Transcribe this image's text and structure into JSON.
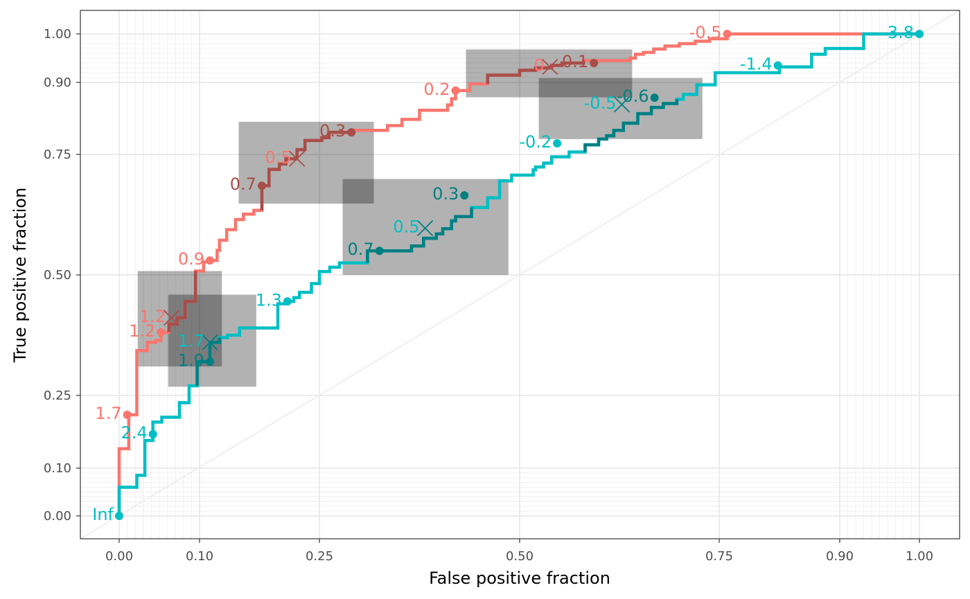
{
  "chart_data": {
    "type": "line",
    "title": "",
    "xlabel": "False positive fraction",
    "ylabel": "True positive fraction",
    "xlim": [
      -0.05,
      1.05
    ],
    "ylim": [
      -0.05,
      1.05
    ],
    "scale": "probit-style nonlinear (labeled ticks)",
    "grid": true,
    "legend": "none",
    "x_ticks": [
      {
        "value": 0.0,
        "label": "0.00"
      },
      {
        "value": 0.1,
        "label": "0.10"
      },
      {
        "value": 0.25,
        "label": "0.25"
      },
      {
        "value": 0.5,
        "label": "0.50"
      },
      {
        "value": 0.75,
        "label": "0.75"
      },
      {
        "value": 0.9,
        "label": "0.90"
      },
      {
        "value": 1.0,
        "label": "1.00"
      }
    ],
    "y_ticks": [
      {
        "value": 0.0,
        "label": "0.00"
      },
      {
        "value": 0.1,
        "label": "0.10"
      },
      {
        "value": 0.25,
        "label": "0.25"
      },
      {
        "value": 0.5,
        "label": "0.50"
      },
      {
        "value": 0.75,
        "label": "0.75"
      },
      {
        "value": 0.9,
        "label": "0.90"
      },
      {
        "value": 1.0,
        "label": "1.00"
      }
    ],
    "reference_line": {
      "from": [
        -0.05,
        -0.05
      ],
      "to": [
        1.05,
        1.05
      ],
      "color": "#ebebeb"
    },
    "series": [
      {
        "color": "#F8766D",
        "dark_color": "#a84e49",
        "steps": [
          [
            0.0,
            0.0
          ],
          [
            0.0,
            0.14
          ],
          [
            0.012,
            0.14
          ],
          [
            0.012,
            0.21
          ],
          [
            0.022,
            0.21
          ],
          [
            0.022,
            0.343
          ],
          [
            0.035,
            0.343
          ],
          [
            0.035,
            0.36
          ],
          [
            0.045,
            0.36
          ],
          [
            0.045,
            0.364
          ],
          [
            0.052,
            0.364
          ],
          [
            0.052,
            0.381
          ],
          [
            0.062,
            0.381
          ],
          [
            0.062,
            0.398
          ],
          [
            0.072,
            0.398
          ],
          [
            0.072,
            0.411
          ],
          [
            0.082,
            0.411
          ],
          [
            0.082,
            0.445
          ],
          [
            0.095,
            0.445
          ],
          [
            0.095,
            0.508
          ],
          [
            0.105,
            0.508
          ],
          [
            0.105,
            0.527
          ],
          [
            0.113,
            0.527
          ],
          [
            0.113,
            0.53
          ],
          [
            0.122,
            0.53
          ],
          [
            0.122,
            0.551
          ],
          [
            0.125,
            0.551
          ],
          [
            0.125,
            0.572
          ],
          [
            0.134,
            0.572
          ],
          [
            0.134,
            0.594
          ],
          [
            0.145,
            0.594
          ],
          [
            0.145,
            0.615
          ],
          [
            0.155,
            0.615
          ],
          [
            0.155,
            0.626
          ],
          [
            0.168,
            0.626
          ],
          [
            0.168,
            0.634
          ],
          [
            0.178,
            0.634
          ],
          [
            0.178,
            0.685
          ],
          [
            0.187,
            0.685
          ],
          [
            0.187,
            0.719
          ],
          [
            0.2,
            0.719
          ],
          [
            0.2,
            0.73
          ],
          [
            0.208,
            0.73
          ],
          [
            0.208,
            0.741
          ],
          [
            0.222,
            0.741
          ],
          [
            0.222,
            0.76
          ],
          [
            0.232,
            0.76
          ],
          [
            0.232,
            0.779
          ],
          [
            0.253,
            0.779
          ],
          [
            0.253,
            0.785
          ],
          [
            0.262,
            0.785
          ],
          [
            0.262,
            0.796
          ],
          [
            0.29,
            0.796
          ],
          [
            0.29,
            0.8
          ],
          [
            0.335,
            0.8
          ],
          [
            0.335,
            0.81
          ],
          [
            0.353,
            0.81
          ],
          [
            0.353,
            0.823
          ],
          [
            0.375,
            0.823
          ],
          [
            0.375,
            0.842
          ],
          [
            0.41,
            0.842
          ],
          [
            0.41,
            0.853
          ],
          [
            0.415,
            0.853
          ],
          [
            0.415,
            0.866
          ],
          [
            0.42,
            0.866
          ],
          [
            0.42,
            0.883
          ],
          [
            0.438,
            0.883
          ],
          [
            0.438,
            0.897
          ],
          [
            0.46,
            0.897
          ],
          [
            0.46,
            0.915
          ],
          [
            0.5,
            0.915
          ],
          [
            0.5,
            0.925
          ],
          [
            0.52,
            0.925
          ],
          [
            0.52,
            0.93
          ],
          [
            0.54,
            0.93
          ],
          [
            0.54,
            0.935
          ],
          [
            0.553,
            0.935
          ],
          [
            0.553,
            0.94
          ],
          [
            0.58,
            0.94
          ],
          [
            0.58,
            0.945
          ],
          [
            0.638,
            0.945
          ],
          [
            0.638,
            0.95
          ],
          [
            0.645,
            0.95
          ],
          [
            0.645,
            0.958
          ],
          [
            0.655,
            0.958
          ],
          [
            0.655,
            0.962
          ],
          [
            0.668,
            0.962
          ],
          [
            0.668,
            0.969
          ],
          [
            0.682,
            0.969
          ],
          [
            0.682,
            0.975
          ],
          [
            0.7,
            0.975
          ],
          [
            0.7,
            0.98
          ],
          [
            0.72,
            0.98
          ],
          [
            0.72,
            0.985
          ],
          [
            0.738,
            0.985
          ],
          [
            0.738,
            0.99
          ],
          [
            0.76,
            0.99
          ],
          [
            0.76,
            1.0
          ],
          [
            1.0,
            1.0
          ]
        ],
        "points": [
          {
            "x": 0.01,
            "y": 0.21,
            "label": "1.7"
          },
          {
            "x": 0.052,
            "y": 0.381,
            "label": "1.2"
          },
          {
            "x": 0.113,
            "y": 0.53,
            "label": "0.9"
          },
          {
            "x": 0.178,
            "y": 0.685,
            "label": "0.7"
          },
          {
            "x": 0.29,
            "y": 0.796,
            "label": "0.3"
          },
          {
            "x": 0.42,
            "y": 0.883,
            "label": "0.2"
          },
          {
            "x": 0.593,
            "y": 0.94,
            "label": "0.1"
          },
          {
            "x": 0.76,
            "y": 1.0,
            "label": "-0.5"
          }
        ],
        "highlight_segments": [
          {
            "from": 0.062,
            "to": 0.095
          },
          {
            "from": 0.178,
            "to": 0.29
          },
          {
            "from": 0.46,
            "to": 0.593
          }
        ],
        "crosses": [
          {
            "x": 0.065,
            "y": 0.411,
            "label": "1.2"
          },
          {
            "x": 0.222,
            "y": 0.741,
            "label": "0.5"
          },
          {
            "x": 0.538,
            "y": 0.932,
            "label": "0"
          }
        ],
        "boxes": [
          {
            "x0": 0.023,
            "x1": 0.128,
            "y0": 0.31,
            "y1": 0.508
          },
          {
            "x0": 0.149,
            "x1": 0.318,
            "y0": 0.648,
            "y1": 0.818
          },
          {
            "x0": 0.433,
            "x1": 0.641,
            "y0": 0.869,
            "y1": 0.968
          }
        ]
      },
      {
        "color": "#00BFC4",
        "dark_color": "#007f83",
        "steps": [
          [
            0.0,
            0.0
          ],
          [
            0.0,
            0.06
          ],
          [
            0.022,
            0.06
          ],
          [
            0.022,
            0.085
          ],
          [
            0.032,
            0.085
          ],
          [
            0.032,
            0.157
          ],
          [
            0.042,
            0.157
          ],
          [
            0.042,
            0.195
          ],
          [
            0.053,
            0.195
          ],
          [
            0.053,
            0.205
          ],
          [
            0.075,
            0.205
          ],
          [
            0.075,
            0.235
          ],
          [
            0.087,
            0.235
          ],
          [
            0.087,
            0.27
          ],
          [
            0.097,
            0.27
          ],
          [
            0.097,
            0.32
          ],
          [
            0.113,
            0.32
          ],
          [
            0.113,
            0.36
          ],
          [
            0.125,
            0.36
          ],
          [
            0.125,
            0.37
          ],
          [
            0.135,
            0.37
          ],
          [
            0.135,
            0.375
          ],
          [
            0.15,
            0.375
          ],
          [
            0.15,
            0.39
          ],
          [
            0.198,
            0.39
          ],
          [
            0.198,
            0.44
          ],
          [
            0.21,
            0.44
          ],
          [
            0.21,
            0.445
          ],
          [
            0.218,
            0.445
          ],
          [
            0.218,
            0.453
          ],
          [
            0.225,
            0.453
          ],
          [
            0.225,
            0.464
          ],
          [
            0.24,
            0.464
          ],
          [
            0.24,
            0.482
          ],
          [
            0.25,
            0.482
          ],
          [
            0.25,
            0.507
          ],
          [
            0.263,
            0.507
          ],
          [
            0.263,
            0.516
          ],
          [
            0.275,
            0.516
          ],
          [
            0.275,
            0.525
          ],
          [
            0.31,
            0.525
          ],
          [
            0.31,
            0.55
          ],
          [
            0.365,
            0.55
          ],
          [
            0.365,
            0.56
          ],
          [
            0.38,
            0.56
          ],
          [
            0.38,
            0.576
          ],
          [
            0.396,
            0.576
          ],
          [
            0.396,
            0.585
          ],
          [
            0.404,
            0.585
          ],
          [
            0.404,
            0.596
          ],
          [
            0.415,
            0.596
          ],
          [
            0.415,
            0.612
          ],
          [
            0.42,
            0.612
          ],
          [
            0.42,
            0.621
          ],
          [
            0.44,
            0.621
          ],
          [
            0.44,
            0.64
          ],
          [
            0.46,
            0.64
          ],
          [
            0.46,
            0.66
          ],
          [
            0.475,
            0.66
          ],
          [
            0.475,
            0.695
          ],
          [
            0.49,
            0.695
          ],
          [
            0.49,
            0.707
          ],
          [
            0.517,
            0.707
          ],
          [
            0.517,
            0.718
          ],
          [
            0.52,
            0.718
          ],
          [
            0.52,
            0.724
          ],
          [
            0.53,
            0.724
          ],
          [
            0.53,
            0.732
          ],
          [
            0.54,
            0.732
          ],
          [
            0.54,
            0.745
          ],
          [
            0.562,
            0.745
          ],
          [
            0.562,
            0.755
          ],
          [
            0.582,
            0.755
          ],
          [
            0.582,
            0.77
          ],
          [
            0.599,
            0.77
          ],
          [
            0.599,
            0.782
          ],
          [
            0.609,
            0.782
          ],
          [
            0.609,
            0.789
          ],
          [
            0.618,
            0.789
          ],
          [
            0.618,
            0.8
          ],
          [
            0.63,
            0.8
          ],
          [
            0.63,
            0.815
          ],
          [
            0.648,
            0.815
          ],
          [
            0.648,
            0.835
          ],
          [
            0.665,
            0.835
          ],
          [
            0.665,
            0.848
          ],
          [
            0.68,
            0.848
          ],
          [
            0.68,
            0.856
          ],
          [
            0.697,
            0.856
          ],
          [
            0.697,
            0.865
          ],
          [
            0.705,
            0.865
          ],
          [
            0.705,
            0.875
          ],
          [
            0.722,
            0.875
          ],
          [
            0.722,
            0.895
          ],
          [
            0.745,
            0.895
          ],
          [
            0.745,
            0.92
          ],
          [
            0.825,
            0.92
          ],
          [
            0.825,
            0.932
          ],
          [
            0.865,
            0.932
          ],
          [
            0.865,
            0.958
          ],
          [
            0.882,
            0.958
          ],
          [
            0.882,
            0.97
          ],
          [
            0.93,
            0.97
          ],
          [
            0.93,
            1.0
          ],
          [
            1.0,
            1.0
          ]
        ],
        "points": [
          {
            "x": 0.0,
            "y": 0.0,
            "label": "Inf"
          },
          {
            "x": 0.042,
            "y": 0.17,
            "label": "2.4"
          },
          {
            "x": 0.113,
            "y": 0.32,
            "label": "1.9"
          },
          {
            "x": 0.21,
            "y": 0.445,
            "label": "1.3"
          },
          {
            "x": 0.325,
            "y": 0.55,
            "label": "0.7"
          },
          {
            "x": 0.431,
            "y": 0.665,
            "label": "0.3"
          },
          {
            "x": 0.547,
            "y": 0.773,
            "label": "-0.2"
          },
          {
            "x": 0.669,
            "y": 0.868,
            "label": "-0.6"
          },
          {
            "x": 0.823,
            "y": 0.935,
            "label": "-1.4"
          },
          {
            "x": 1.0,
            "y": 1.0,
            "label": "-3.8"
          }
        ],
        "highlight_segments": [
          {
            "from": 0.097,
            "to": 0.132
          },
          {
            "from": 0.31,
            "to": 0.44
          },
          {
            "from": 0.575,
            "to": 0.697
          }
        ],
        "crosses": [
          {
            "x": 0.113,
            "y": 0.36,
            "label": "1.7"
          },
          {
            "x": 0.382,
            "y": 0.597,
            "label": "0.5"
          },
          {
            "x": 0.628,
            "y": 0.854,
            "label": "-0.5"
          }
        ],
        "boxes": [
          {
            "x0": 0.061,
            "x1": 0.171,
            "y0": 0.268,
            "y1": 0.459
          },
          {
            "x0": 0.279,
            "x1": 0.486,
            "y0": 0.5,
            "y1": 0.699
          },
          {
            "x0": 0.524,
            "x1": 0.729,
            "y0": 0.782,
            "y1": 0.909
          }
        ]
      }
    ]
  }
}
